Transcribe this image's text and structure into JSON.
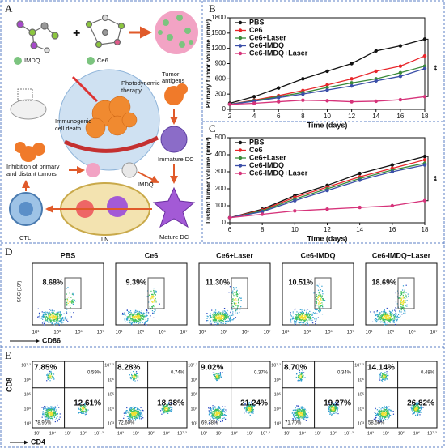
{
  "panel_labels": [
    "A",
    "B",
    "C",
    "D",
    "E"
  ],
  "schematic": {
    "imdq": "IMDQ",
    "ce6": "Ce6",
    "photodynamic": [
      "Photodynamic",
      "therapy"
    ],
    "icd": [
      "Immunogenic",
      "cell death"
    ],
    "antigens": [
      "Tumor",
      "antigens"
    ],
    "immature_dc": "Immature DC",
    "imdq_arrow": "IMDQ",
    "mature_dc": "Mature DC",
    "ln": "LN",
    "ctl": "CTL",
    "inhibition": [
      "Inhibition of primary",
      "and distant tumors"
    ]
  },
  "chart_data": [
    {
      "type": "line",
      "y_label": "Primary tumor volume (mm³)",
      "x_label": "Time (days)",
      "x": [
        2,
        4,
        6,
        8,
        10,
        12,
        14,
        16,
        18
      ],
      "xlim": [
        2,
        18
      ],
      "xticks": [
        2,
        4,
        6,
        8,
        10,
        12,
        14,
        16,
        18
      ],
      "ylim": [
        0,
        1800
      ],
      "yticks": [
        0,
        300,
        600,
        900,
        1200,
        1500,
        1800
      ],
      "legend": "upper left",
      "annotation": "**",
      "series": [
        {
          "name": "PBS",
          "color": "#111111",
          "values": [
            120,
            250,
            420,
            600,
            750,
            900,
            1150,
            1250,
            1380
          ]
        },
        {
          "name": "Ce6",
          "color": "#e8262b",
          "values": [
            100,
            180,
            270,
            370,
            480,
            600,
            750,
            850,
            1050
          ]
        },
        {
          "name": "Ce6+Laser",
          "color": "#3a8a3a",
          "values": [
            100,
            170,
            250,
            330,
            430,
            520,
            600,
            720,
            850
          ]
        },
        {
          "name": "Ce6-IMDQ",
          "color": "#3b4fa8",
          "values": [
            100,
            160,
            230,
            300,
            380,
            460,
            560,
            650,
            800
          ]
        },
        {
          "name": "Ce6-IMDQ+Laser",
          "color": "#d6337a",
          "values": [
            100,
            120,
            150,
            180,
            170,
            150,
            160,
            190,
            250
          ]
        }
      ]
    },
    {
      "type": "line",
      "y_label": "Distant tumor volume (mm³)",
      "x_label": "Time (days)",
      "x": [
        6,
        8,
        10,
        12,
        14,
        16,
        18
      ],
      "xlim": [
        6,
        18
      ],
      "xticks": [
        6,
        8,
        10,
        12,
        14,
        16,
        18
      ],
      "ylim": [
        0,
        500
      ],
      "yticks": [
        0,
        100,
        200,
        300,
        400,
        500
      ],
      "legend": "upper left",
      "annotation": "**",
      "series": [
        {
          "name": "PBS",
          "color": "#111111",
          "values": [
            30,
            80,
            160,
            220,
            290,
            340,
            390
          ]
        },
        {
          "name": "Ce6",
          "color": "#e8262b",
          "values": [
            30,
            75,
            150,
            210,
            270,
            320,
            370
          ]
        },
        {
          "name": "Ce6+Laser",
          "color": "#3a8a3a",
          "values": [
            30,
            70,
            140,
            200,
            260,
            310,
            350
          ]
        },
        {
          "name": "Ce6-IMDQ",
          "color": "#3b4fa8",
          "values": [
            30,
            65,
            130,
            190,
            250,
            300,
            340
          ]
        },
        {
          "name": "Ce6-IMDQ+Laser",
          "color": "#d6337a",
          "values": [
            30,
            50,
            70,
            80,
            90,
            100,
            130
          ]
        }
      ]
    }
  ],
  "flow_d": {
    "y_label": "SSC (10³)",
    "x_label": "CD86",
    "xticks": [
      "10¹",
      "10³",
      "10⁵",
      "10⁷"
    ],
    "plots": [
      {
        "title": "PBS",
        "gate": "8.68%"
      },
      {
        "title": "Ce6",
        "gate": "9.39%"
      },
      {
        "title": "Ce6+Laser",
        "gate": "11.30%"
      },
      {
        "title": "Ce6-IMDQ",
        "gate": "10.51%"
      },
      {
        "title": "Ce6-IMDQ+Laser",
        "gate": "18.69%"
      }
    ]
  },
  "flow_e": {
    "y_label": "CD8",
    "x_label": "CD4",
    "xticks": [
      "10³",
      "10⁴",
      "10⁵",
      "10⁶",
      "10⁷·²"
    ],
    "yticks": [
      "10⁷·²",
      "10⁶",
      "10⁵",
      "10⁴",
      "10³"
    ],
    "plots": [
      {
        "quadrants": [
          "7.85%",
          "0.59%",
          "12.61%",
          "78.95%"
        ]
      },
      {
        "quadrants": [
          "8.28%",
          "0.74%",
          "18.38%",
          "72.60%"
        ]
      },
      {
        "quadrants": [
          "9.02%",
          "0.37%",
          "21.24%",
          "69.38%"
        ]
      },
      {
        "quadrants": [
          "8.70%",
          "0.34%",
          "19.27%",
          "71.70%"
        ]
      },
      {
        "quadrants": [
          "14.14%",
          "0.48%",
          "26.82%",
          "58.56%"
        ]
      }
    ]
  }
}
